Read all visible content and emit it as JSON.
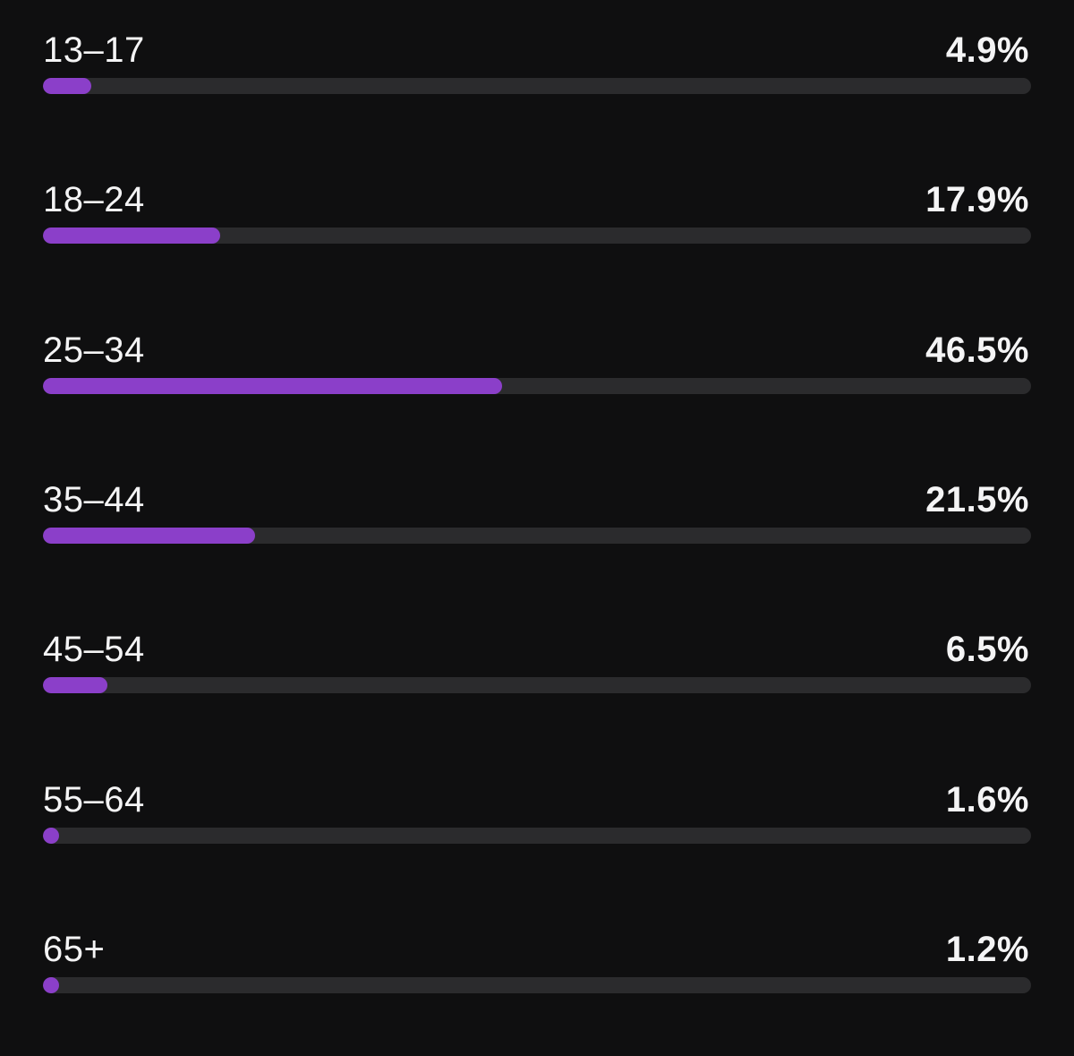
{
  "chart_data": {
    "type": "bar",
    "orientation": "horizontal",
    "categories": [
      "13–17",
      "18–24",
      "25–34",
      "35–44",
      "45–54",
      "55–64",
      "65+"
    ],
    "values": [
      4.9,
      17.9,
      46.5,
      21.5,
      6.5,
      1.6,
      1.2
    ],
    "value_labels": [
      "4.9%",
      "17.9%",
      "46.5%",
      "21.5%",
      "6.5%",
      "1.6%",
      "1.2%"
    ],
    "unit": "%",
    "xlim": [
      0,
      100
    ],
    "grid": false,
    "legend": "none",
    "title": "",
    "xlabel": "",
    "ylabel": ""
  },
  "colors": {
    "background": "#0f0f10",
    "bar": "#8b3fc9",
    "track": "#2b2b2d",
    "text": "#f4f4f5"
  }
}
